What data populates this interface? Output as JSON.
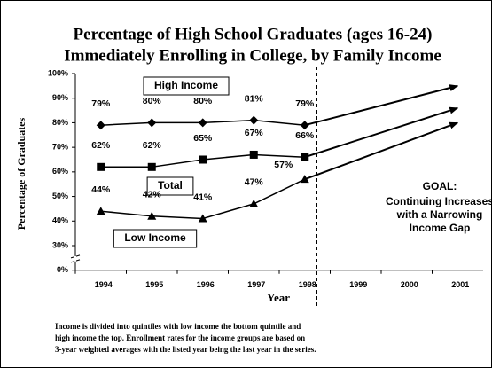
{
  "chart_data": {
    "type": "line",
    "title": "Percentage of High School Graduates (ages 16-24)",
    "subtitle": "Immediately Enrolling in College, by Family Income",
    "ylabel": "Percentage of Graduates",
    "xlabel": "Year",
    "categories": [
      "1994",
      "1995",
      "1996",
      "1997",
      "1998",
      "1999",
      "2000",
      "2001"
    ],
    "ylim": [
      0,
      100
    ],
    "ybreak": [
      0,
      30
    ],
    "yticks": [
      {
        "value": 0,
        "label": "0%"
      },
      {
        "value": 30,
        "label": "30%"
      },
      {
        "value": 40,
        "label": "40%"
      },
      {
        "value": 50,
        "label": "50%"
      },
      {
        "value": 60,
        "label": "60%"
      },
      {
        "value": 70,
        "label": "70%"
      },
      {
        "value": 80,
        "label": "80%"
      },
      {
        "value": 90,
        "label": "90%"
      },
      {
        "value": 100,
        "label": "100%"
      }
    ],
    "series": [
      {
        "name": "High Income",
        "color": "#000000",
        "marker": "diamond",
        "values": [
          79,
          80,
          80,
          81,
          79,
          null,
          null,
          null
        ],
        "value_labels": [
          "79%",
          "80%",
          "80%",
          "81%",
          "79%",
          null,
          null,
          null
        ],
        "goal_end": 95
      },
      {
        "name": "Total",
        "color": "#000000",
        "marker": "square",
        "values": [
          62,
          62,
          65,
          67,
          66,
          null,
          null,
          null
        ],
        "value_labels": [
          "62%",
          "62%",
          "65%",
          "67%",
          "66%",
          null,
          null,
          null
        ],
        "goal_end": 86
      },
      {
        "name": "Low Income",
        "color": "#000000",
        "marker": "triangle",
        "values": [
          44,
          42,
          41,
          47,
          57,
          null,
          null,
          null
        ],
        "value_labels": [
          "44%",
          "42%",
          "41%",
          "47%",
          "57%",
          null,
          null,
          null
        ],
        "goal_end": 80
      }
    ],
    "annotations": [
      "GOAL:",
      "Continuing Increases",
      "with a Narrowing",
      "Income Gap"
    ],
    "footnote": [
      "Income is divided into quintiles with low income the bottom quintile and",
      "high income the top.  Enrollment rates for the income groups are based on",
      "3-year weighted averages with the listed year being the last year in the series."
    ]
  }
}
